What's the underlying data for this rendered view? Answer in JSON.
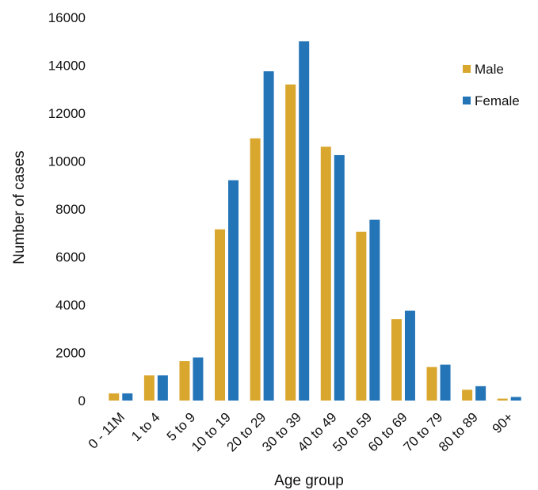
{
  "chart_data": {
    "type": "bar",
    "categories": [
      "0 - 11M",
      "1 to 4",
      "5 to 9",
      "10 to 19",
      "20 to 29",
      "30 to 39",
      "40 to 49",
      "50 to 59",
      "60 to 69",
      "70 to 79",
      "80 to 89",
      "90+"
    ],
    "series": [
      {
        "name": "Male",
        "color": "#D9A62E",
        "values": [
          300,
          1050,
          1650,
          7150,
          10950,
          13200,
          10600,
          7050,
          3400,
          1400,
          450,
          80
        ]
      },
      {
        "name": "Female",
        "color": "#2475B8",
        "values": [
          300,
          1050,
          1800,
          9200,
          13750,
          15000,
          10250,
          7550,
          3750,
          1500,
          600,
          150
        ]
      }
    ],
    "xlabel": "Age group",
    "ylabel": "Number of cases",
    "ylim": [
      0,
      16000
    ],
    "yticks": [
      0,
      2000,
      4000,
      6000,
      8000,
      10000,
      12000,
      14000,
      16000
    ],
    "grid": false,
    "legend_position": "right"
  }
}
